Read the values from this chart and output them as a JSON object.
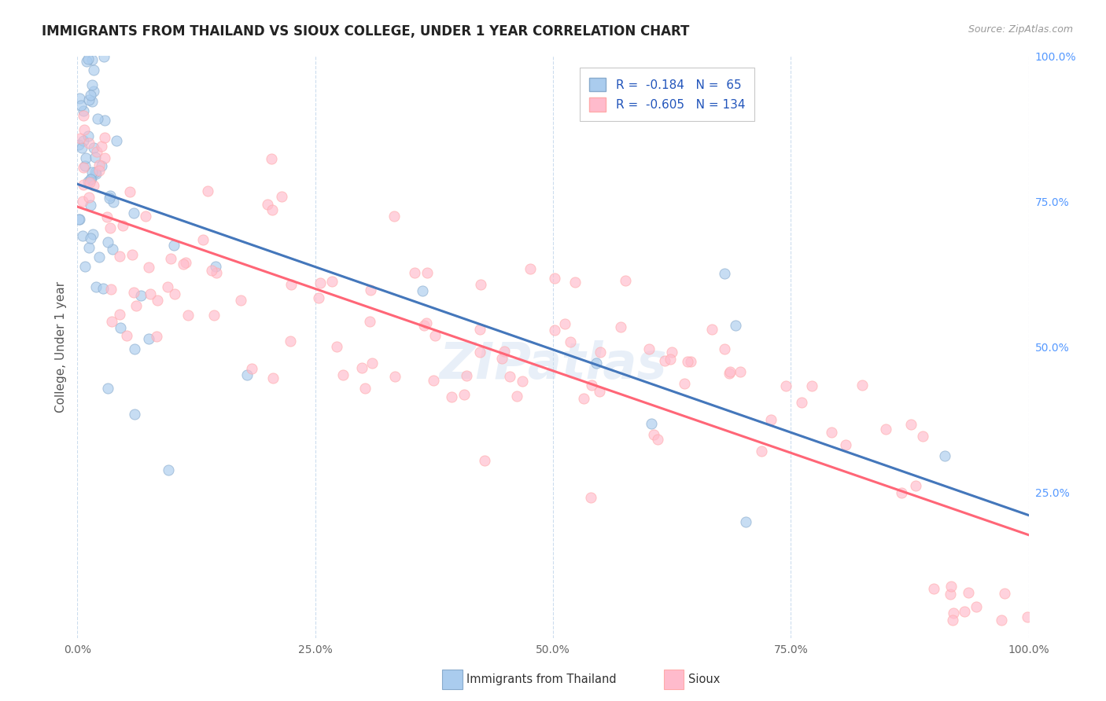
{
  "title": "IMMIGRANTS FROM THAILAND VS SIOUX COLLEGE, UNDER 1 YEAR CORRELATION CHART",
  "source": "Source: ZipAtlas.com",
  "ylabel": "College, Under 1 year",
  "legend_labels": [
    "Immigrants from Thailand",
    "Sioux"
  ],
  "color_blue_fill": "#AACCEE",
  "color_pink_fill": "#FFBBCC",
  "color_blue_edge": "#88AACC",
  "color_pink_edge": "#FFAAAA",
  "color_blue_line": "#4477BB",
  "color_pink_line": "#FF6677",
  "color_dashed": "#BBCCDD",
  "background_color": "#FFFFFF",
  "grid_color": "#CCDDEE",
  "right_axis_color": "#5599FF",
  "r_blue": -0.184,
  "n_blue": 65,
  "r_pink": -0.605,
  "n_pink": 134,
  "watermark": "ZIPatlas",
  "title_fontsize": 12,
  "legend_fontsize": 11
}
